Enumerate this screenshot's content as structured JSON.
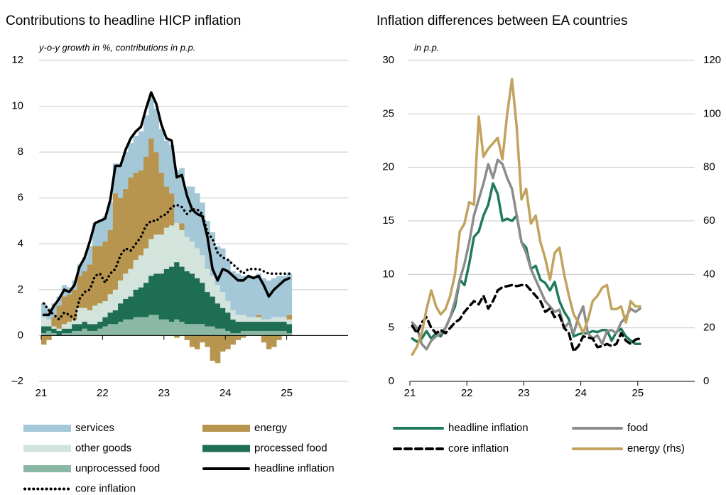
{
  "chart_data": [
    {
      "type": "bar",
      "stacked": true,
      "title": "Contributions to headline HICP inflation",
      "subtitle": "y-o-y growth in %, contributions in p.p.",
      "categories": [
        "21",
        null,
        null,
        null,
        null,
        null,
        null,
        null,
        null,
        null,
        null,
        null,
        "22",
        null,
        null,
        null,
        null,
        null,
        null,
        null,
        null,
        null,
        null,
        null,
        "23",
        null,
        null,
        null,
        null,
        null,
        null,
        null,
        null,
        null,
        null,
        null,
        "24",
        null,
        null,
        null,
        null,
        null,
        null,
        null,
        null,
        null,
        null,
        null,
        "25"
      ],
      "ylim": [
        -2,
        12
      ],
      "yticks": [
        {
          "value": -2,
          "label": "–2"
        },
        0,
        2,
        4,
        6,
        8,
        10,
        12
      ],
      "grid": true,
      "series": [
        {
          "name": "services",
          "type": "bar",
          "color": "#a4c8d7",
          "values": [
            0.6,
            0.5,
            0.6,
            0.4,
            0.5,
            0.3,
            0.4,
            0.5,
            0.6,
            0.8,
            1.0,
            1.1,
            1.1,
            1.2,
            1.3,
            1.5,
            1.6,
            1.5,
            1.6,
            1.7,
            1.8,
            1.9,
            1.9,
            1.9,
            2.0,
            2.1,
            2.3,
            2.4,
            2.2,
            2.4,
            2.4,
            2.3,
            2.1,
            1.9,
            1.7,
            1.9,
            1.8,
            1.7,
            1.8,
            1.7,
            1.8,
            1.8,
            1.8,
            1.8,
            1.7,
            1.7,
            1.8,
            1.8,
            1.8
          ]
        },
        {
          "name": "energy",
          "type": "bar",
          "color": "#b8954f",
          "values": [
            -0.4,
            -0.2,
            0.4,
            1.0,
            1.2,
            1.2,
            1.3,
            1.4,
            1.6,
            2.0,
            2.6,
            2.5,
            2.6,
            2.8,
            4.2,
            3.6,
            3.7,
            4.0,
            3.8,
            3.7,
            4.0,
            4.4,
            3.6,
            2.7,
            1.8,
            1.4,
            -0.1,
            0.3,
            -0.2,
            -0.5,
            -0.6,
            -0.3,
            -0.5,
            -1.1,
            -1.2,
            -0.7,
            -0.6,
            -0.4,
            -0.2,
            -0.1,
            0.0,
            0.0,
            0.1,
            -0.3,
            -0.6,
            -0.5,
            -0.2,
            0.0,
            0.2
          ]
        },
        {
          "name": "other goods",
          "type": "bar",
          "color": "#d3e4dd",
          "values": [
            0.4,
            0.3,
            0.1,
            0.1,
            0.2,
            0.3,
            0.2,
            0.7,
            0.6,
            0.6,
            0.8,
            0.8,
            0.7,
            0.8,
            0.9,
            1.0,
            1.1,
            1.2,
            1.3,
            1.4,
            1.5,
            1.6,
            1.7,
            1.7,
            1.8,
            1.8,
            1.7,
            1.6,
            1.5,
            1.4,
            1.3,
            1.2,
            1.0,
            0.9,
            0.8,
            0.7,
            0.5,
            0.4,
            0.3,
            0.3,
            0.2,
            0.2,
            0.2,
            0.1,
            0.1,
            0.2,
            0.2,
            0.2,
            0.2
          ]
        },
        {
          "name": "processed food",
          "type": "bar",
          "color": "#1e6e54",
          "values": [
            0.3,
            0.2,
            0.2,
            0.2,
            0.2,
            0.2,
            0.3,
            0.3,
            0.3,
            0.3,
            0.3,
            0.3,
            0.4,
            0.5,
            0.6,
            0.8,
            0.9,
            1.0,
            1.2,
            1.3,
            1.5,
            1.7,
            1.8,
            2.0,
            2.2,
            2.4,
            2.5,
            2.4,
            2.3,
            2.2,
            2.0,
            1.8,
            1.5,
            1.3,
            1.1,
            0.9,
            0.8,
            0.6,
            0.5,
            0.4,
            0.4,
            0.4,
            0.4,
            0.4,
            0.4,
            0.4,
            0.4,
            0.4,
            0.4
          ]
        },
        {
          "name": "unprocessed food",
          "type": "bar",
          "color": "#8ab8a4",
          "values": [
            0.1,
            0.2,
            0.1,
            0.0,
            0.1,
            0.1,
            0.2,
            0.2,
            0.3,
            0.2,
            0.2,
            0.3,
            0.4,
            0.5,
            0.5,
            0.6,
            0.7,
            0.7,
            0.8,
            0.8,
            0.8,
            0.9,
            0.9,
            0.7,
            0.7,
            0.6,
            0.7,
            0.6,
            0.5,
            0.5,
            0.5,
            0.5,
            0.4,
            0.4,
            0.3,
            0.3,
            0.2,
            0.1,
            0.1,
            0.2,
            0.2,
            0.2,
            0.2,
            0.2,
            0.2,
            0.2,
            0.2,
            0.2,
            0.1
          ]
        },
        {
          "name": "headline inflation",
          "type": "line",
          "style": "solid",
          "color": "#000000",
          "values": [
            0.9,
            0.9,
            1.3,
            1.6,
            2.0,
            1.9,
            2.2,
            3.0,
            3.4,
            4.1,
            4.9,
            5.0,
            5.1,
            5.9,
            7.4,
            7.4,
            8.1,
            8.6,
            8.9,
            9.1,
            9.9,
            10.6,
            10.1,
            9.2,
            8.6,
            8.5,
            6.9,
            7.0,
            6.1,
            5.5,
            5.3,
            5.2,
            4.3,
            2.9,
            2.4,
            2.9,
            2.8,
            2.6,
            2.4,
            2.4,
            2.6,
            2.5,
            2.6,
            2.2,
            1.7,
            2.0,
            2.2,
            2.4,
            2.5
          ]
        },
        {
          "name": "core inflation",
          "type": "line",
          "style": "dotted",
          "color": "#000000",
          "values": [
            1.4,
            1.1,
            0.9,
            0.7,
            1.0,
            0.9,
            0.7,
            1.6,
            1.9,
            2.0,
            2.6,
            2.7,
            2.3,
            2.7,
            2.9,
            3.5,
            3.8,
            3.7,
            4.0,
            4.3,
            4.8,
            5.0,
            5.0,
            5.2,
            5.3,
            5.6,
            5.7,
            5.6,
            5.3,
            5.5,
            5.5,
            5.3,
            4.5,
            4.2,
            3.6,
            3.4,
            3.3,
            3.1,
            2.9,
            2.7,
            2.9,
            2.9,
            2.9,
            2.8,
            2.7,
            2.7,
            2.7,
            2.7,
            2.7
          ]
        }
      ]
    },
    {
      "type": "line",
      "title": "Inflation differences between EA countries",
      "subtitle": "in p.p.",
      "categories": [
        "21",
        null,
        null,
        null,
        null,
        null,
        null,
        null,
        null,
        null,
        null,
        null,
        "22",
        null,
        null,
        null,
        null,
        null,
        null,
        null,
        null,
        null,
        null,
        null,
        "23",
        null,
        null,
        null,
        null,
        null,
        null,
        null,
        null,
        null,
        null,
        null,
        "24",
        null,
        null,
        null,
        null,
        null,
        null,
        null,
        null,
        null,
        null,
        null,
        "25"
      ],
      "ylim": [
        0,
        30
      ],
      "yticks": [
        0,
        5,
        10,
        15,
        20,
        25,
        30
      ],
      "y2lim": [
        0,
        120
      ],
      "y2ticks": [
        0,
        20,
        40,
        60,
        80,
        100,
        120
      ],
      "grid": true,
      "series": [
        {
          "name": "headline inflation",
          "style": "solid",
          "color": "#1f7a5a",
          "values": [
            4,
            3.7,
            4,
            4.7,
            4,
            4.5,
            4.2,
            5,
            6,
            7,
            9.5,
            9,
            11,
            13.5,
            14,
            15.5,
            16.5,
            18.5,
            17.5,
            15,
            15.2,
            15,
            15.5,
            13,
            12.5,
            10.5,
            10.8,
            9.5,
            9.2,
            8.5,
            9.3,
            7.5,
            6.5,
            5.8,
            4.2,
            4.4,
            4.5,
            4.5,
            4.7,
            4.6,
            4.8,
            4.8,
            3.8,
            4.6,
            4.9,
            4.2,
            3.8,
            3.5,
            3.5
          ]
        },
        {
          "name": "food",
          "style": "solid",
          "color": "#8c8c8c",
          "values": [
            5.5,
            5,
            3.5,
            3,
            3.8,
            4.2,
            4.5,
            5,
            6,
            7.5,
            9.5,
            11,
            13,
            15.5,
            17,
            18.5,
            20.3,
            19,
            20.7,
            20.3,
            19,
            18,
            15.5,
            13,
            12,
            10.5,
            9.5,
            8.5,
            7.5,
            7,
            6.5,
            6.7,
            5,
            5.5,
            4.5,
            6,
            7,
            4.5,
            4,
            4.3,
            3.5,
            4.7,
            4.8,
            4.5,
            5.5,
            6,
            6.8,
            6.5,
            6.8
          ]
        },
        {
          "name": "core inflation",
          "style": "dashed",
          "color": "#000000",
          "values": [
            5.2,
            4.5,
            5.5,
            6,
            5,
            4.5,
            4.8,
            4.5,
            5,
            5.5,
            5.8,
            6.5,
            7,
            7.5,
            7.2,
            8,
            6.8,
            7.5,
            8.5,
            8.8,
            8.9,
            9,
            8.9,
            9,
            9,
            8.5,
            8,
            7.5,
            6.5,
            6.8,
            6,
            6.2,
            5,
            4.5,
            2.8,
            3.3,
            4.2,
            4.1,
            4,
            3.2,
            3.3,
            3.5,
            3.3,
            3.5,
            4.5,
            3.8,
            3.5,
            3.9,
            4.0
          ]
        },
        {
          "name": "energy (rhs)",
          "style": "solid",
          "axis": "y2",
          "color": "#c1a35e",
          "values": [
            10,
            13,
            18,
            27,
            34,
            28,
            25,
            27,
            32,
            40,
            56,
            59,
            67,
            66,
            99,
            84,
            87,
            89,
            91,
            83,
            100,
            113,
            95,
            68,
            72,
            59,
            62,
            52,
            46,
            38,
            48,
            50,
            40,
            32,
            25,
            22,
            18,
            23,
            30,
            32,
            35,
            36,
            27,
            27,
            28,
            22,
            30,
            28,
            28
          ]
        }
      ]
    }
  ]
}
